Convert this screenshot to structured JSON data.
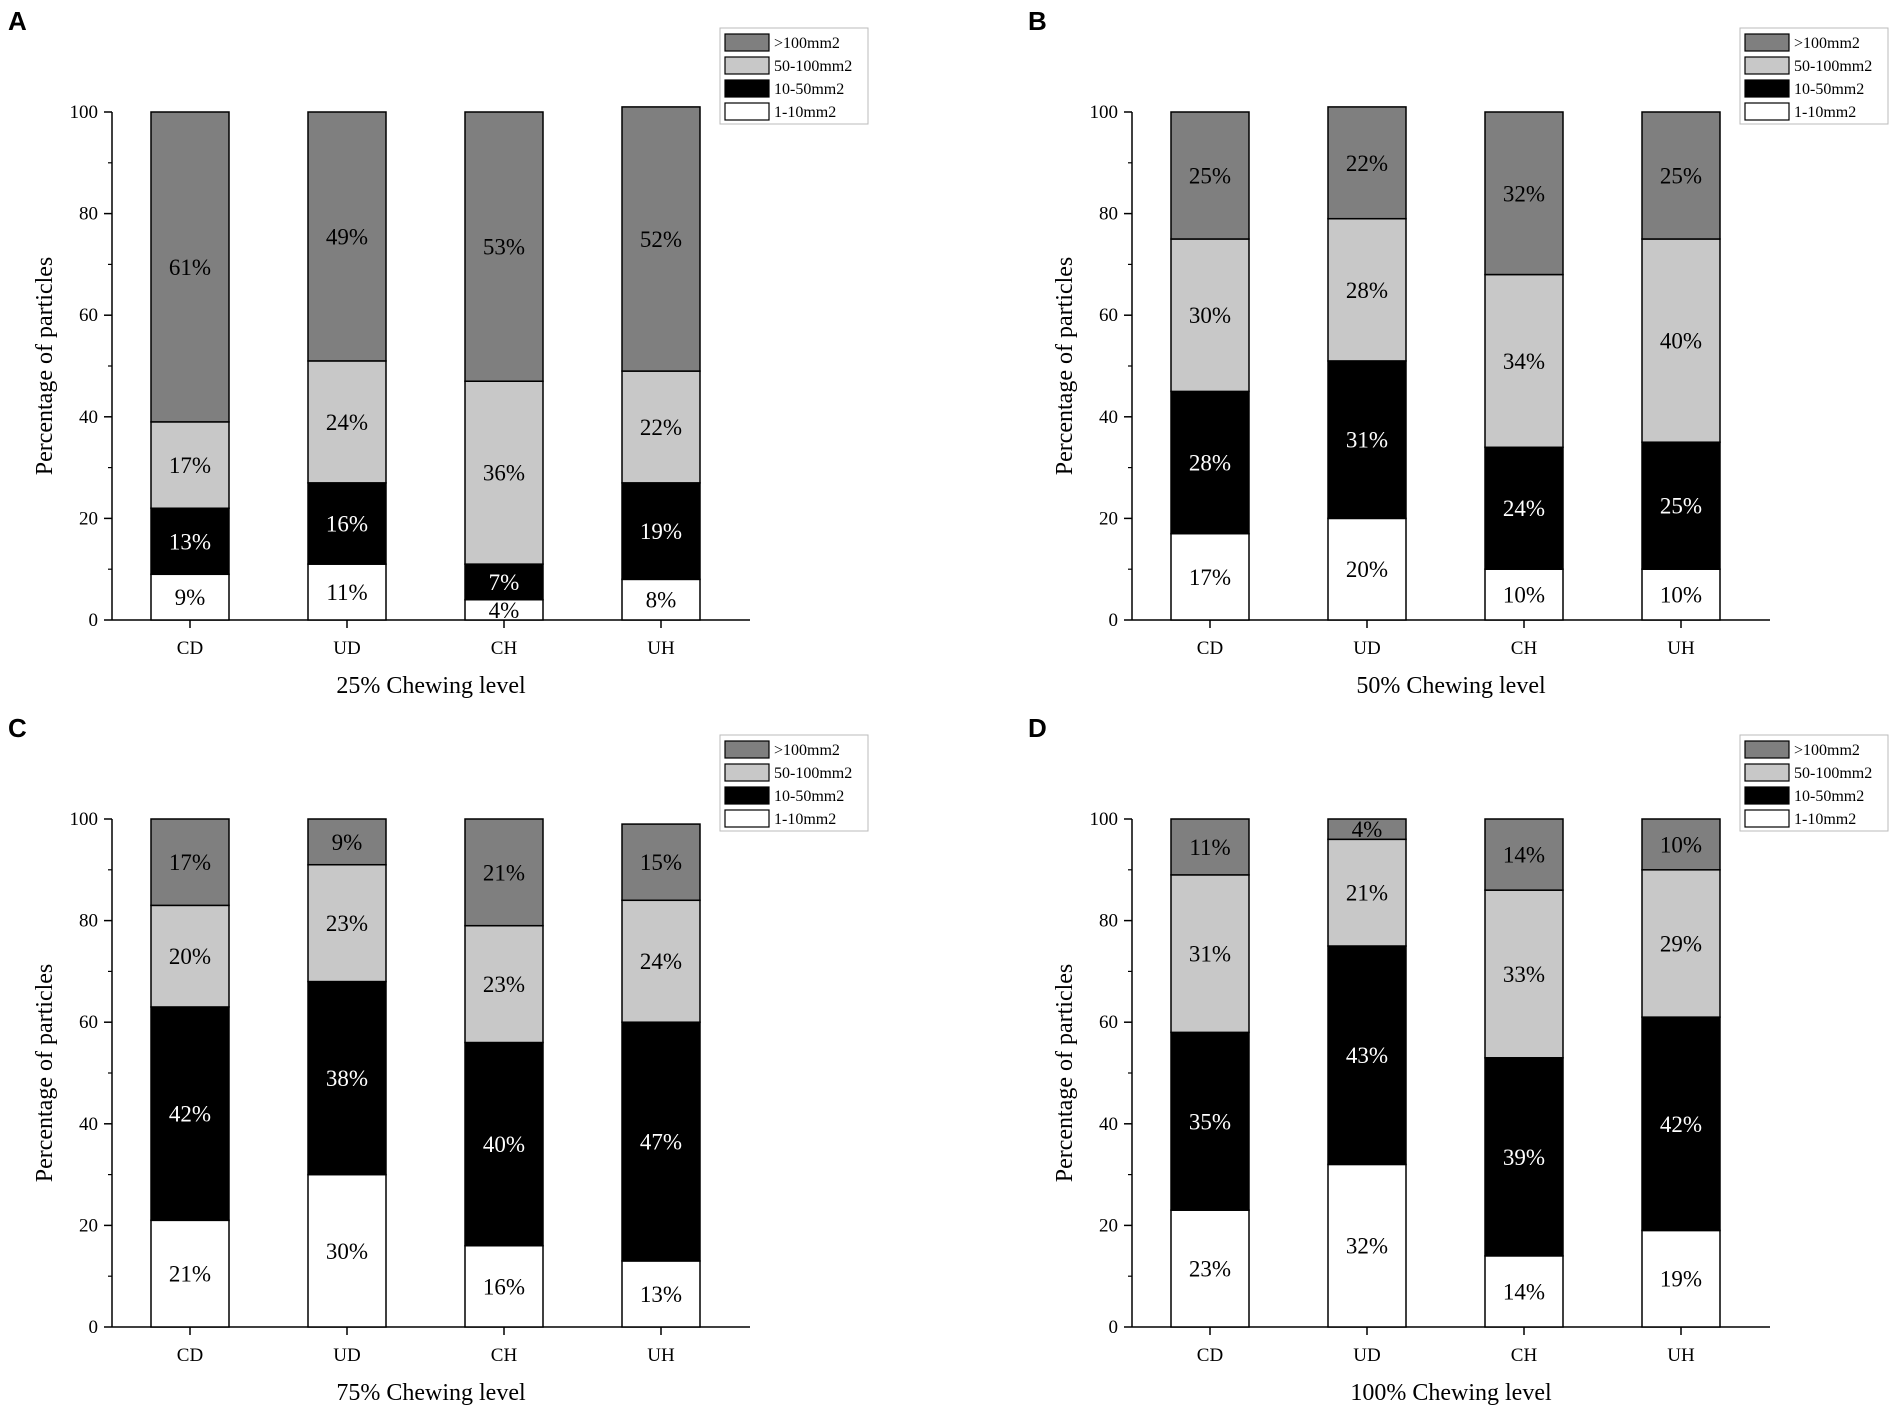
{
  "colors": {
    "gt100": "#7f7f7f",
    "r50_100": "#c8c8c8",
    "r10_50": "#000000",
    "r1_10": "#ffffff",
    "label_on_dark": "#ffffff",
    "label_on_light": "#000000"
  },
  "legend": [
    ">100mm2",
    "50-100mm2",
    "10-50mm2",
    "1-10mm2"
  ],
  "chart_data": [
    {
      "panel": "A",
      "type": "bar",
      "stacked": true,
      "xlabel": "25% Chewing level",
      "ylabel": "Percentage of particles",
      "ylim": [
        0,
        100
      ],
      "yticks": [
        "0",
        "20",
        "40",
        "60",
        "80",
        "100"
      ],
      "categories": [
        "CD",
        "UD",
        "CH",
        "UH"
      ],
      "series": [
        {
          "name": "1-10mm2",
          "values": [
            9,
            11,
            4,
            8
          ]
        },
        {
          "name": "10-50mm2",
          "values": [
            13,
            16,
            7,
            19
          ]
        },
        {
          "name": "50-100mm2",
          "values": [
            17,
            24,
            36,
            22
          ]
        },
        {
          "name": ">100mm2",
          "values": [
            61,
            49,
            53,
            52
          ]
        }
      ],
      "labels": [
        [
          "9%",
          "11%",
          "4%",
          "8%"
        ],
        [
          "13%",
          "16%",
          "7%",
          "19%"
        ],
        [
          "17%",
          "24%",
          "36%",
          "22%"
        ],
        [
          "61%",
          "49%",
          "53%",
          "52%"
        ]
      ]
    },
    {
      "panel": "B",
      "type": "bar",
      "stacked": true,
      "xlabel": "50% Chewing level",
      "ylabel": "Percentage of particles",
      "ylim": [
        0,
        100
      ],
      "yticks": [
        "0",
        "20",
        "40",
        "60",
        "80",
        "100"
      ],
      "categories": [
        "CD",
        "UD",
        "CH",
        "UH"
      ],
      "series": [
        {
          "name": "1-10mm2",
          "values": [
            17,
            20,
            10,
            10
          ]
        },
        {
          "name": "10-50mm2",
          "values": [
            28,
            31,
            24,
            25
          ]
        },
        {
          "name": "50-100mm2",
          "values": [
            30,
            28,
            34,
            40
          ]
        },
        {
          "name": ">100mm2",
          "values": [
            25,
            22,
            32,
            25
          ]
        }
      ],
      "labels": [
        [
          "17%",
          "20%",
          "10%",
          "10%"
        ],
        [
          "28%",
          "31%",
          "24%",
          "25%"
        ],
        [
          "30%",
          "28%",
          "34%",
          "40%"
        ],
        [
          "25%",
          "22%",
          "32%",
          "25%"
        ]
      ]
    },
    {
      "panel": "C",
      "type": "bar",
      "stacked": true,
      "xlabel": "75% Chewing level",
      "ylabel": "Percentage of particles",
      "ylim": [
        0,
        100
      ],
      "yticks": [
        "0",
        "20",
        "40",
        "60",
        "80",
        "100"
      ],
      "categories": [
        "CD",
        "UD",
        "CH",
        "UH"
      ],
      "series": [
        {
          "name": "1-10mm2",
          "values": [
            21,
            30,
            16,
            13
          ]
        },
        {
          "name": "10-50mm2",
          "values": [
            42,
            38,
            40,
            47
          ]
        },
        {
          "name": "50-100mm2",
          "values": [
            20,
            23,
            23,
            24
          ]
        },
        {
          "name": ">100mm2",
          "values": [
            17,
            9,
            21,
            15
          ]
        }
      ],
      "labels": [
        [
          "21%",
          "30%",
          "16%",
          "13%"
        ],
        [
          "42%",
          "38%",
          "40%",
          "47%"
        ],
        [
          "20%",
          "23%",
          "23%",
          "24%"
        ],
        [
          "17%",
          "9%",
          "21%",
          "15%"
        ]
      ]
    },
    {
      "panel": "D",
      "type": "bar",
      "stacked": true,
      "xlabel": "100% Chewing level",
      "ylabel": "Percentage of particles",
      "ylim": [
        0,
        100
      ],
      "yticks": [
        "0",
        "20",
        "40",
        "60",
        "80",
        "100"
      ],
      "categories": [
        "CD",
        "UD",
        "CH",
        "UH"
      ],
      "series": [
        {
          "name": "1-10mm2",
          "values": [
            23,
            32,
            14,
            19
          ]
        },
        {
          "name": "10-50mm2",
          "values": [
            35,
            43,
            39,
            42
          ]
        },
        {
          "name": "50-100mm2",
          "values": [
            31,
            21,
            33,
            29
          ]
        },
        {
          "name": ">100mm2",
          "values": [
            11,
            4,
            14,
            10
          ]
        }
      ],
      "labels": [
        [
          "23%",
          "32%",
          "14%",
          "19%"
        ],
        [
          "35%",
          "43%",
          "39%",
          "42%"
        ],
        [
          "31%",
          "21%",
          "33%",
          "29%"
        ],
        [
          "11%",
          "4%",
          "14%",
          "10%"
        ]
      ]
    }
  ]
}
